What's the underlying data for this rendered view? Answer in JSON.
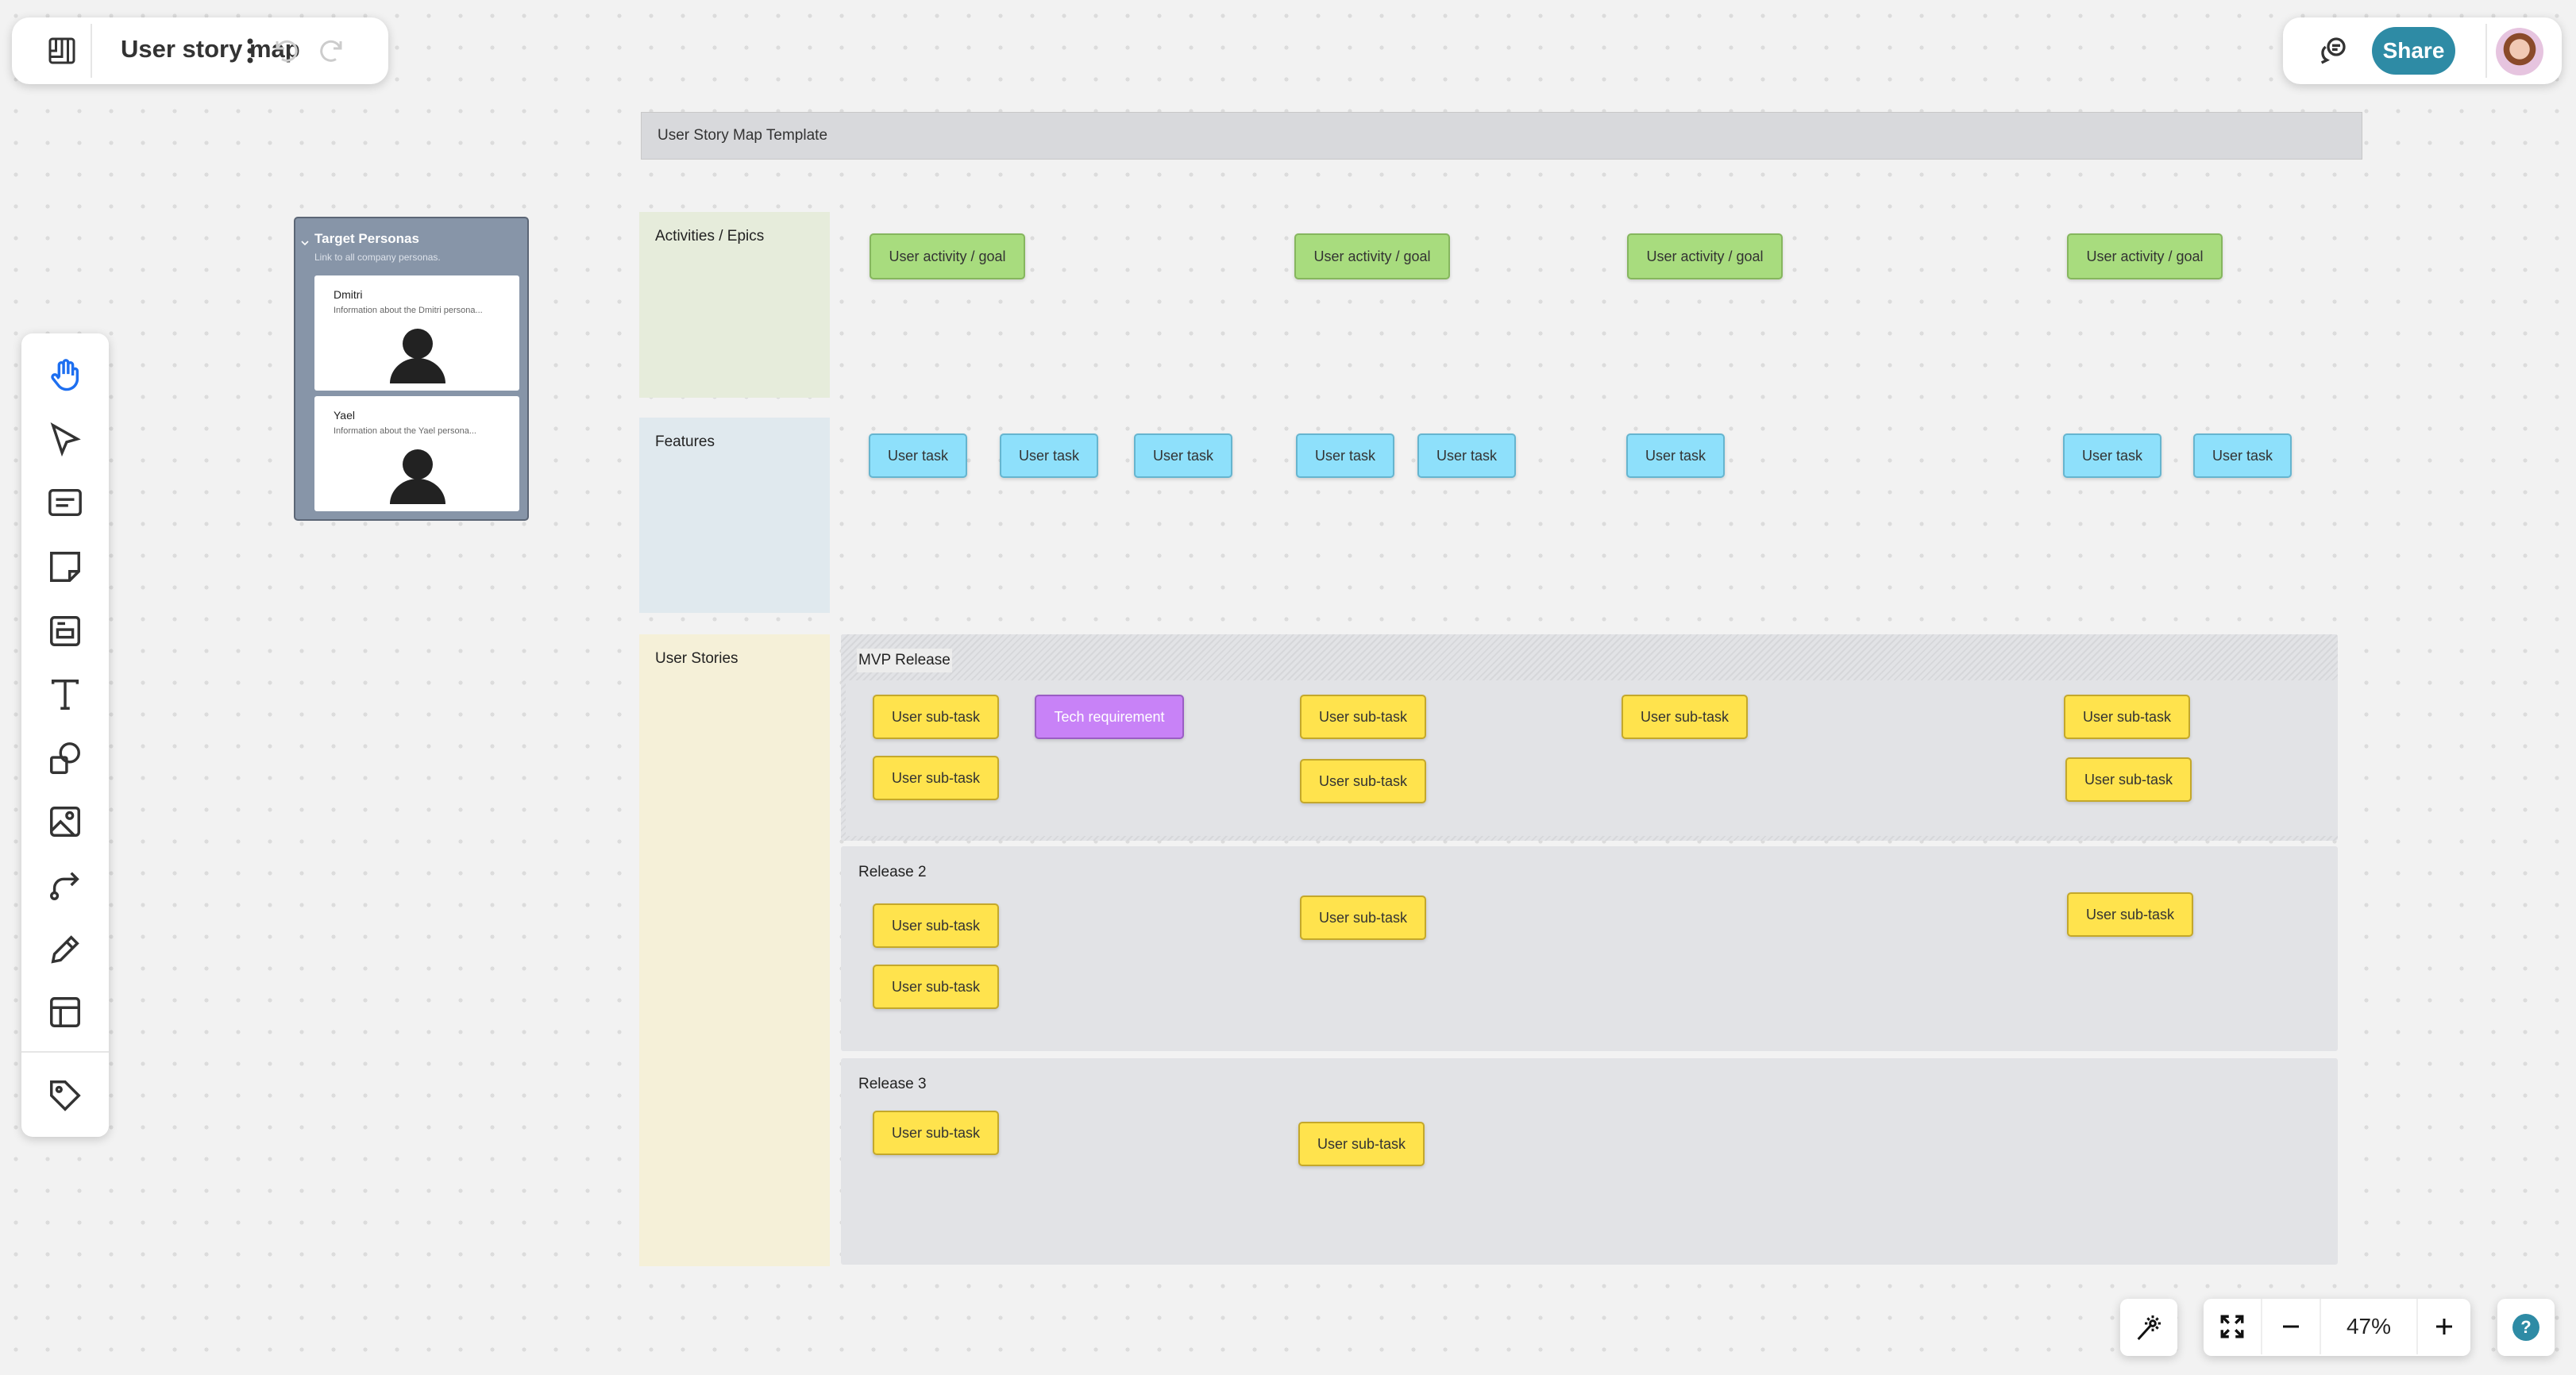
{
  "topbar": {
    "title": "User story map",
    "share_label": "Share"
  },
  "board": {
    "template_title": "User Story Map Template",
    "columns": {
      "activities": "Activities / Epics",
      "features": "Features",
      "stories": "User Stories"
    },
    "activities": [
      "User activity / goal",
      "User activity / goal",
      "User activity / goal",
      "User activity / goal"
    ],
    "features": [
      "User task",
      "User task",
      "User task",
      "User task",
      "User task",
      "User task",
      "User task",
      "User task"
    ],
    "releases": [
      {
        "label": "MVP Release",
        "items": [
          "User sub-task",
          "Tech requirement",
          "User sub-task",
          "User sub-task",
          "User sub-task",
          "User sub-task",
          "User sub-task",
          "User sub-task"
        ]
      },
      {
        "label": "Release 2",
        "items": [
          "User sub-task",
          "User sub-task",
          "User sub-task",
          "User sub-task"
        ]
      },
      {
        "label": "Release 3",
        "items": [
          "User sub-task",
          "User sub-task"
        ]
      }
    ]
  },
  "personas": {
    "title": "Target Personas",
    "subtitle": "Link to all company personas.",
    "cards": [
      {
        "name": "Dmitri",
        "info": "Information about the Dmitri persona..."
      },
      {
        "name": "Yael",
        "info": "Information about the Yael persona..."
      }
    ]
  },
  "zoom": {
    "level": "47%"
  },
  "colors": {
    "accent": "#2e8ba5",
    "activity": "#a8dc7e",
    "feature": "#8ee0fb",
    "subtask": "#ffe34d",
    "tech": "#c882f7",
    "active_tool": "#1e6ff0"
  },
  "tools": [
    "hand-icon",
    "select-icon",
    "card-icon",
    "sticky-note-icon",
    "frame-icon",
    "text-icon",
    "shapes-icon",
    "image-icon",
    "connector-icon",
    "pen-icon",
    "template-icon",
    "tag-icon"
  ]
}
